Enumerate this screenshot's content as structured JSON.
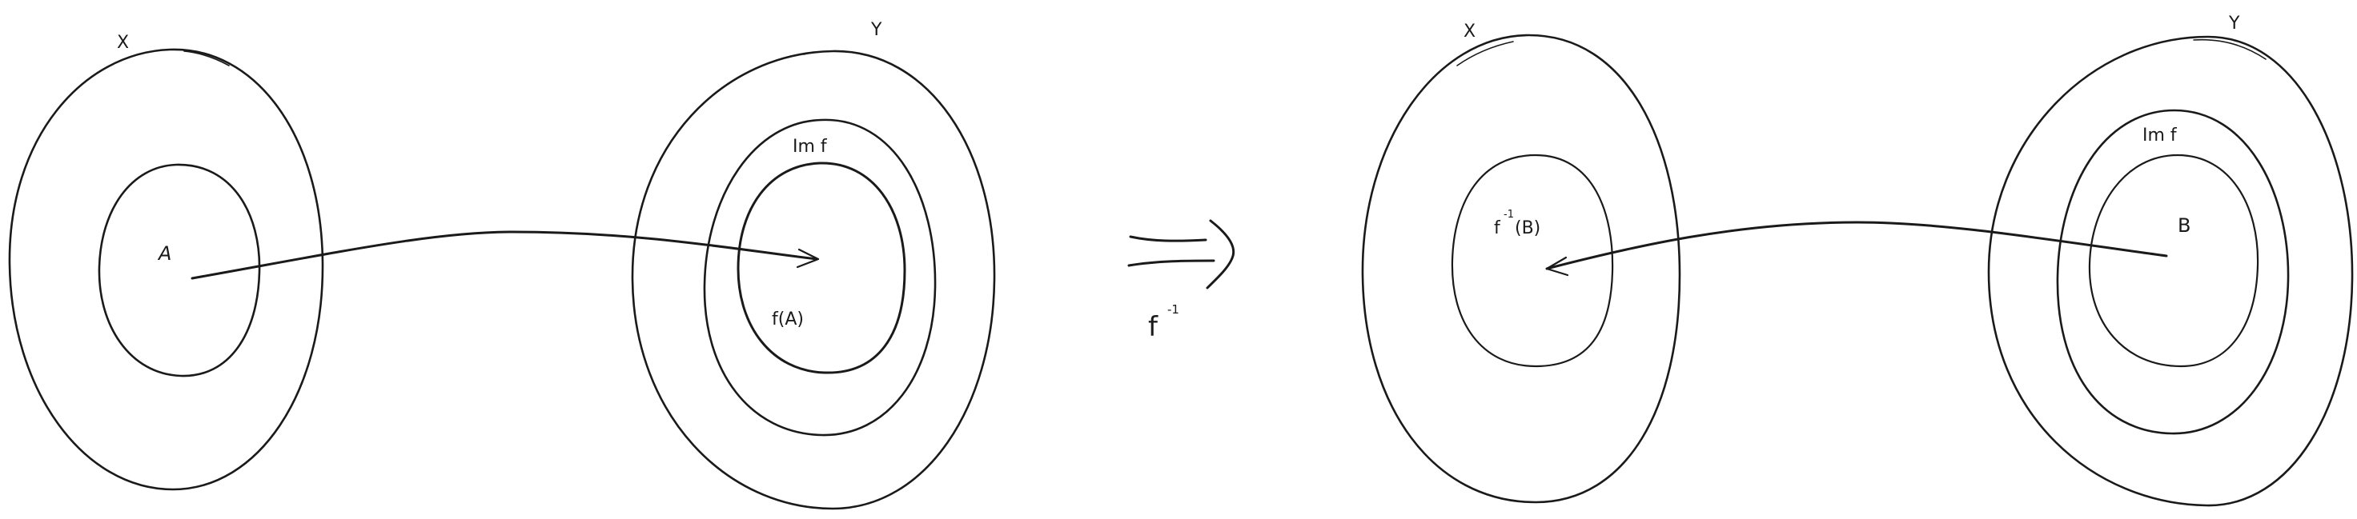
{
  "left": {
    "x_label": "X",
    "y_label": "Y",
    "a_label": "A",
    "im_label": "Im f",
    "fa_label": "f(A)"
  },
  "middle": {
    "map_label": "f",
    "map_exponent": "-1"
  },
  "right": {
    "x_label": "X",
    "y_label": "Y",
    "preimage_f": "f",
    "preimage_exponent": "-1",
    "preimage_arg": "(B)",
    "im_label": "Im f",
    "b_label": "B"
  },
  "colors": {
    "ink": "#1a1a1a",
    "background": "#ffffff"
  }
}
